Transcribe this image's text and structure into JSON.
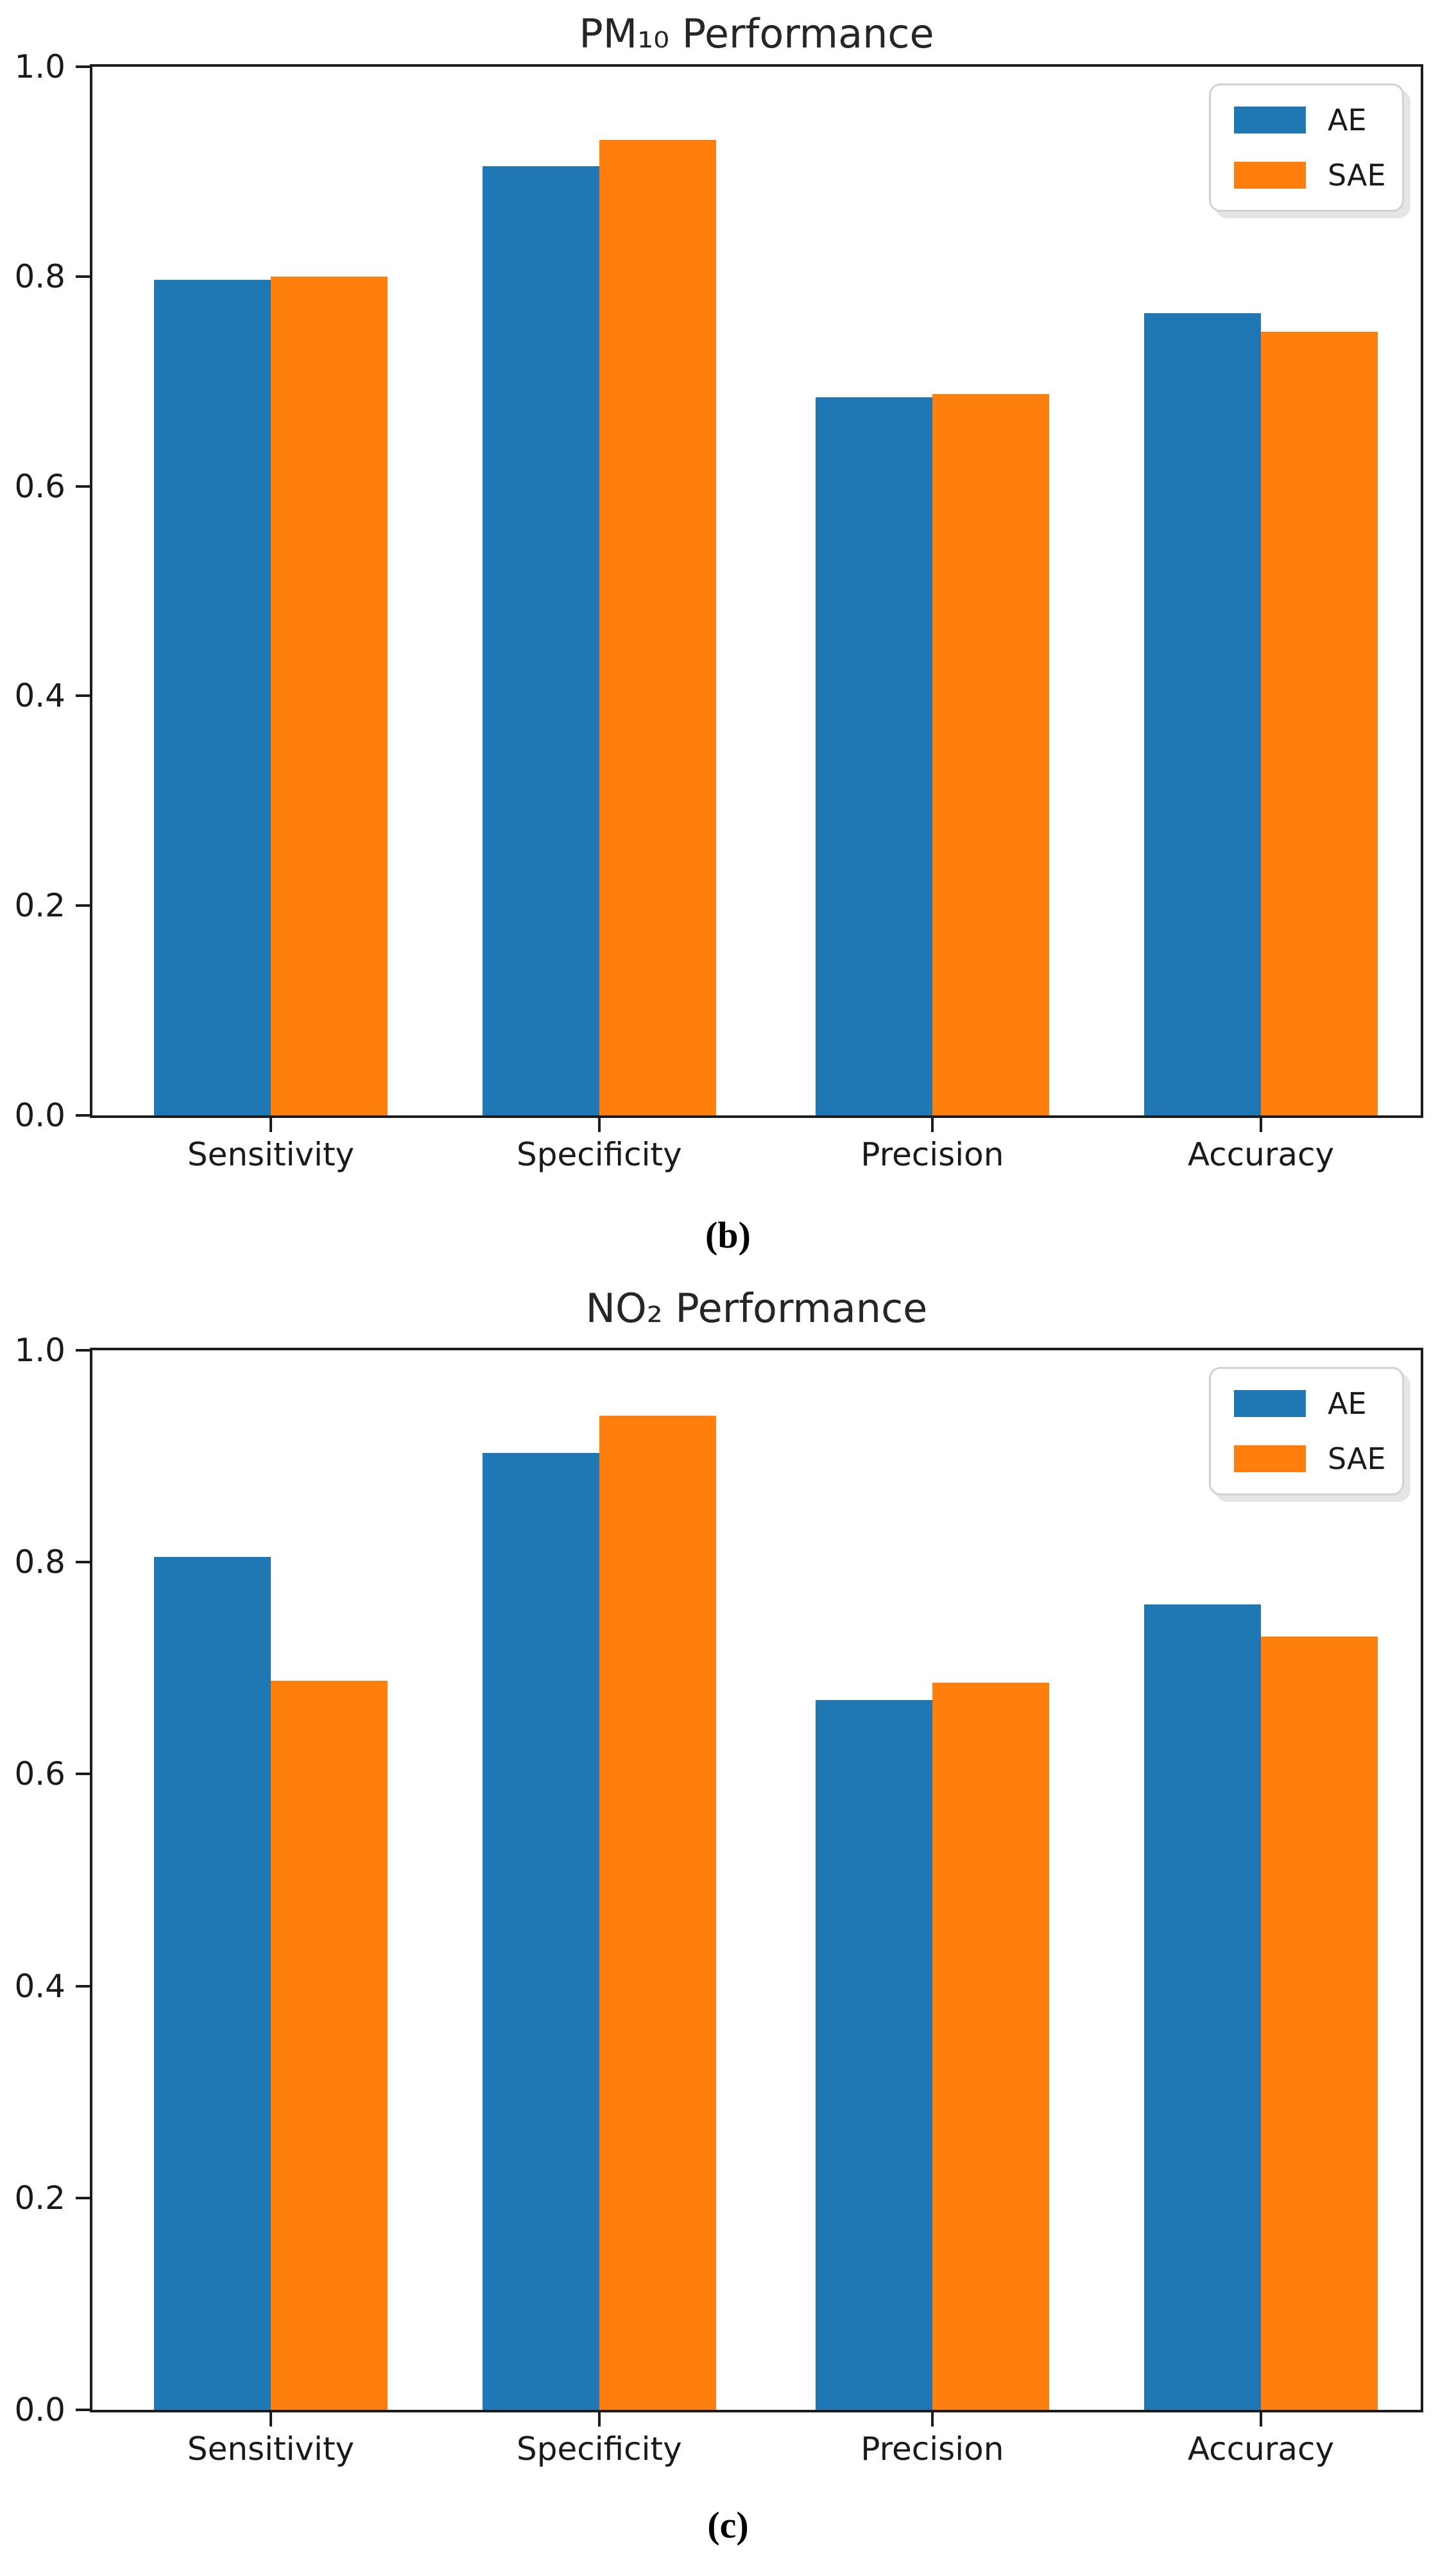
{
  "captions": [
    "(b)",
    "(c)"
  ],
  "chart_data": [
    {
      "type": "bar",
      "title": "PM₁₀ Performance",
      "categories": [
        "Sensitivity",
        "Specificity",
        "Precision",
        "Accuracy"
      ],
      "series": [
        {
          "name": "AE",
          "color": "#1f77b4",
          "values": [
            0.797,
            0.905,
            0.685,
            0.765
          ]
        },
        {
          "name": "SAE",
          "color": "#ff7f0e",
          "values": [
            0.8,
            0.93,
            0.688,
            0.747
          ]
        }
      ],
      "xlabel": "",
      "ylabel": "",
      "ylim": [
        0.0,
        1.0
      ],
      "yticks": [
        "0.0",
        "0.2",
        "0.4",
        "0.6",
        "0.8",
        "1.0"
      ],
      "grid": false,
      "legend_position": "upper right"
    },
    {
      "type": "bar",
      "title": "NO₂ Performance",
      "categories": [
        "Sensitivity",
        "Specificity",
        "Precision",
        "Accuracy"
      ],
      "series": [
        {
          "name": "AE",
          "color": "#1f77b4",
          "values": [
            0.805,
            0.903,
            0.67,
            0.76
          ]
        },
        {
          "name": "SAE",
          "color": "#ff7f0e",
          "values": [
            0.688,
            0.938,
            0.686,
            0.73
          ]
        }
      ],
      "xlabel": "",
      "ylabel": "",
      "ylim": [
        0.0,
        1.0
      ],
      "yticks": [
        "0.0",
        "0.2",
        "0.4",
        "0.6",
        "0.8",
        "1.0"
      ],
      "grid": false,
      "legend_position": "upper right"
    }
  ]
}
